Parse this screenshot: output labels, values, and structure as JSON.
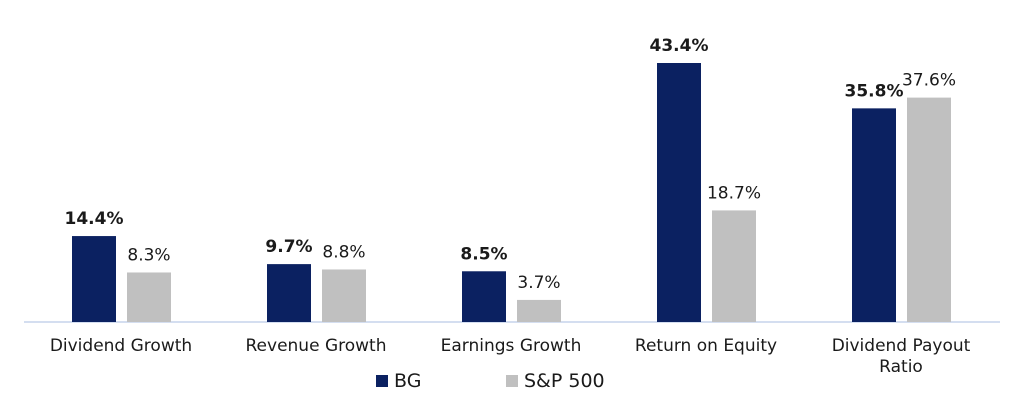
{
  "chart_data": {
    "type": "bar",
    "categories": [
      "Dividend Growth",
      "Revenue Growth",
      "Earnings Growth",
      "Return on Equity",
      "Dividend Payout Ratio"
    ],
    "category_lines": [
      [
        "Dividend Growth"
      ],
      [
        "Revenue Growth"
      ],
      [
        "Earnings Growth"
      ],
      [
        "Return on Equity"
      ],
      [
        "Dividend Payout",
        "Ratio"
      ]
    ],
    "series": [
      {
        "name": "BG",
        "color": "#0b2161",
        "values": [
          14.4,
          9.7,
          8.5,
          43.4,
          35.8
        ],
        "labels": [
          "14.4%",
          "9.7%",
          "8.5%",
          "43.4%",
          "35.8%"
        ]
      },
      {
        "name": "S&P 500",
        "color": "#c0c0c0",
        "values": [
          8.3,
          8.8,
          3.7,
          18.7,
          37.6
        ],
        "labels": [
          "8.3%",
          "8.8%",
          "3.7%",
          "18.7%",
          "37.6%"
        ]
      }
    ],
    "ylim": [
      0,
      43.4
    ],
    "grid": false,
    "axis_color": "#c6d4ec",
    "legend_position": "bottom"
  }
}
